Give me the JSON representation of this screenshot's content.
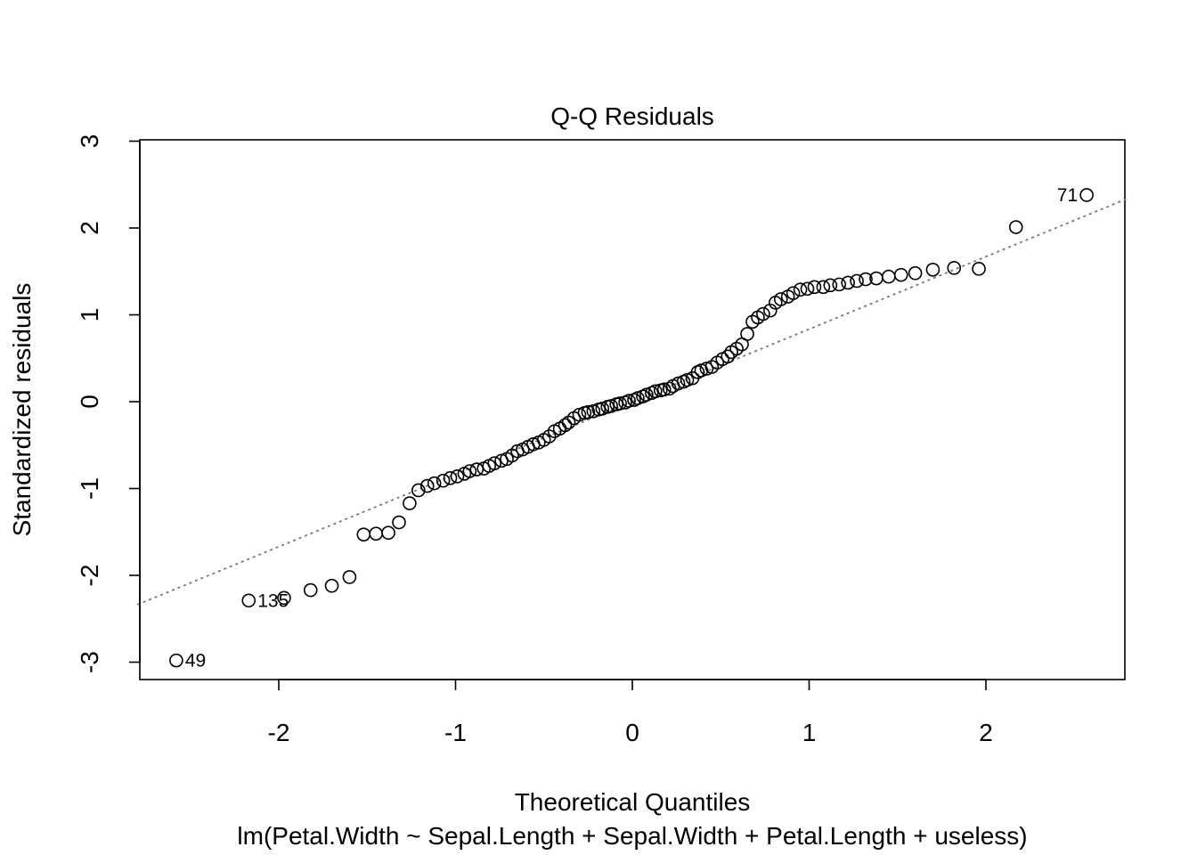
{
  "chart_data": {
    "type": "scatter",
    "title": "Q-Q Residuals",
    "xlabel": "Theoretical Quantiles",
    "ylabel": "Standardized residuals",
    "subtitle": "lm(Petal.Width ~ Sepal.Length + Sepal.Width + Petal.Length + useless)",
    "xlim": [
      -2.8,
      2.8
    ],
    "ylim": [
      -3.2,
      3.0
    ],
    "xticks": [
      -2,
      -1,
      0,
      1,
      2
    ],
    "xtick_labels": [
      "-2",
      "-1",
      "0",
      "1",
      "2"
    ],
    "yticks": [
      -3,
      -2,
      -1,
      0,
      1,
      2,
      3
    ],
    "ytick_labels": [
      "-3",
      "-2",
      "-1",
      "0",
      "1",
      "2",
      "3"
    ],
    "grid": false,
    "reference_line": {
      "slope": 0.835,
      "intercept": 0.0,
      "style": "dotted",
      "color": "#777777"
    },
    "point_color": "#000000",
    "x": [
      -2.58,
      -2.17,
      -1.97,
      -1.82,
      -1.7,
      -1.6,
      -1.52,
      -1.45,
      -1.38,
      -1.32,
      -1.26,
      -1.21,
      -1.16,
      -1.12,
      -1.07,
      -1.03,
      -0.99,
      -0.95,
      -0.92,
      -0.88,
      -0.84,
      -0.81,
      -0.78,
      -0.74,
      -0.71,
      -0.68,
      -0.65,
      -0.62,
      -0.59,
      -0.56,
      -0.53,
      -0.5,
      -0.47,
      -0.44,
      -0.41,
      -0.38,
      -0.36,
      -0.33,
      -0.3,
      -0.27,
      -0.25,
      -0.22,
      -0.19,
      -0.17,
      -0.14,
      -0.12,
      -0.09,
      -0.07,
      -0.04,
      -0.02,
      0.01,
      0.03,
      0.06,
      0.08,
      0.11,
      0.13,
      0.16,
      0.18,
      0.21,
      0.23,
      0.26,
      0.29,
      0.31,
      0.34,
      0.37,
      0.39,
      0.42,
      0.45,
      0.48,
      0.51,
      0.54,
      0.56,
      0.59,
      0.62,
      0.65,
      0.68,
      0.71,
      0.74,
      0.78,
      0.81,
      0.84,
      0.88,
      0.91,
      0.95,
      0.99,
      1.03,
      1.08,
      1.12,
      1.17,
      1.22,
      1.27,
      1.32,
      1.38,
      1.45,
      1.52,
      1.6,
      1.7,
      1.82,
      1.96,
      2.17,
      2.57
    ],
    "y": [
      -2.98,
      -2.29,
      -2.26,
      -2.17,
      -2.12,
      -2.02,
      -1.53,
      -1.52,
      -1.51,
      -1.39,
      -1.17,
      -1.02,
      -0.97,
      -0.94,
      -0.91,
      -0.88,
      -0.86,
      -0.83,
      -0.8,
      -0.78,
      -0.77,
      -0.74,
      -0.71,
      -0.68,
      -0.66,
      -0.62,
      -0.57,
      -0.55,
      -0.52,
      -0.49,
      -0.47,
      -0.44,
      -0.4,
      -0.34,
      -0.31,
      -0.27,
      -0.24,
      -0.19,
      -0.15,
      -0.13,
      -0.12,
      -0.11,
      -0.09,
      -0.08,
      -0.06,
      -0.05,
      -0.03,
      -0.02,
      -0.01,
      0.01,
      0.02,
      0.04,
      0.06,
      0.08,
      0.1,
      0.12,
      0.13,
      0.14,
      0.15,
      0.18,
      0.21,
      0.23,
      0.25,
      0.27,
      0.34,
      0.36,
      0.38,
      0.4,
      0.45,
      0.49,
      0.52,
      0.57,
      0.61,
      0.66,
      0.78,
      0.92,
      0.97,
      1.01,
      1.05,
      1.14,
      1.18,
      1.21,
      1.25,
      1.29,
      1.3,
      1.32,
      1.32,
      1.34,
      1.35,
      1.37,
      1.39,
      1.41,
      1.42,
      1.44,
      1.46,
      1.48,
      1.52,
      1.54,
      1.53,
      2.01,
      2.38
    ],
    "point_labels": [
      {
        "index": 0,
        "text": "49",
        "side": "right"
      },
      {
        "index": 1,
        "text": "135",
        "side": "right"
      },
      {
        "index": 100,
        "text": "71",
        "side": "left"
      }
    ]
  }
}
